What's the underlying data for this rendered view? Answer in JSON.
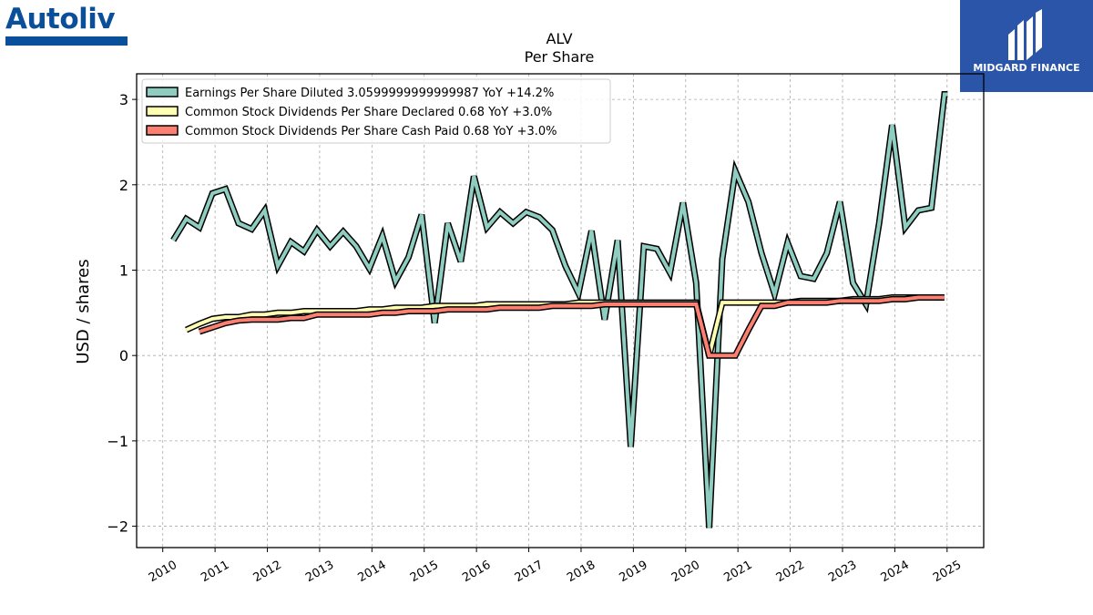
{
  "logos": {
    "left_text": "Autoliv",
    "left_color": "#0a4f99",
    "right_text": "MIDGARD FINANCE",
    "right_bg": "#2a55a8"
  },
  "chart_data": {
    "type": "line",
    "title": "ALV",
    "subtitle": "Per  Share",
    "xlabel": "",
    "ylabel": "USD / shares",
    "xlim": [
      2009.5,
      2025.7
    ],
    "ylim": [
      -2.25,
      3.3
    ],
    "x_ticks": [
      2010,
      2011,
      2012,
      2013,
      2014,
      2015,
      2016,
      2017,
      2018,
      2019,
      2020,
      2021,
      2022,
      2023,
      2024,
      2025
    ],
    "y_ticks": [
      -2,
      -1,
      0,
      1,
      2,
      3
    ],
    "y_tick_labels": [
      "−2",
      "−1",
      "0",
      "1",
      "2",
      "3"
    ],
    "grid": true,
    "legend_position": "top-left",
    "series": [
      {
        "name": "Earnings Per Share Diluted  3.0599999999999987 YoY +14.2%",
        "color": "#8ecdc0",
        "x": [
          2010.2,
          2010.45,
          2010.7,
          2010.95,
          2011.2,
          2011.45,
          2011.7,
          2011.95,
          2012.2,
          2012.45,
          2012.7,
          2012.95,
          2013.2,
          2013.45,
          2013.7,
          2013.95,
          2014.2,
          2014.45,
          2014.7,
          2014.95,
          2015.2,
          2015.45,
          2015.7,
          2015.95,
          2016.2,
          2016.45,
          2016.7,
          2016.95,
          2017.2,
          2017.45,
          2017.7,
          2017.95,
          2018.2,
          2018.45,
          2018.7,
          2018.95,
          2019.2,
          2019.45,
          2019.7,
          2019.95,
          2020.2,
          2020.45,
          2020.7,
          2020.95,
          2021.2,
          2021.45,
          2021.7,
          2021.95,
          2022.2,
          2022.45,
          2022.7,
          2022.95,
          2023.2,
          2023.45,
          2023.7,
          2023.95,
          2024.2,
          2024.45,
          2024.7,
          2024.95,
          2025.2
        ],
        "values": [
          1.35,
          1.6,
          1.5,
          1.9,
          1.95,
          1.55,
          1.48,
          1.7,
          1.05,
          1.33,
          1.22,
          1.47,
          1.28,
          1.45,
          1.28,
          1.02,
          1.4,
          0.87,
          1.15,
          1.65,
          0.38,
          1.55,
          1.1,
          2.1,
          1.5,
          1.68,
          1.55,
          1.68,
          1.62,
          1.47,
          1.05,
          0.73,
          1.46,
          0.42,
          1.35,
          -1.07,
          1.28,
          1.25,
          0.97,
          1.79,
          0.85,
          -2.02,
          1.13,
          2.16,
          1.8,
          1.2,
          0.72,
          1.32,
          0.93,
          0.9,
          1.2,
          1.8,
          0.85,
          0.6,
          1.55,
          2.7,
          1.5,
          1.7,
          1.73,
          3.06,
          3.06
        ],
        "x_end": 2025.0
      },
      {
        "name": "Common Stock Dividends Per Share Declared  0.68 YoY +3.0%",
        "color": "#ffffb3",
        "x": [
          2010.45,
          2010.7,
          2010.95,
          2011.2,
          2011.45,
          2011.7,
          2011.95,
          2012.2,
          2012.45,
          2012.7,
          2012.95,
          2013.2,
          2013.45,
          2013.7,
          2013.95,
          2014.2,
          2014.45,
          2014.7,
          2014.95,
          2015.2,
          2015.45,
          2015.7,
          2015.95,
          2016.2,
          2016.45,
          2016.7,
          2016.95,
          2017.2,
          2017.45,
          2017.7,
          2017.95,
          2018.2,
          2018.45,
          2018.7,
          2018.95,
          2019.2,
          2019.45,
          2019.7,
          2019.95,
          2020.2,
          2020.45,
          2020.7,
          2020.95,
          2021.2,
          2021.45,
          2021.7,
          2021.95,
          2022.2,
          2022.45,
          2022.7,
          2022.95,
          2023.2,
          2023.45,
          2023.7,
          2023.95,
          2024.2,
          2024.45,
          2024.7
        ],
        "values": [
          0.3,
          0.37,
          0.43,
          0.45,
          0.45,
          0.48,
          0.48,
          0.5,
          0.5,
          0.52,
          0.52,
          0.52,
          0.52,
          0.52,
          0.54,
          0.54,
          0.56,
          0.56,
          0.56,
          0.58,
          0.58,
          0.58,
          0.58,
          0.6,
          0.6,
          0.6,
          0.6,
          0.6,
          0.6,
          0.6,
          0.62,
          0.62,
          0.62,
          0.62,
          0.62,
          0.62,
          0.62,
          0.62,
          0.62,
          0.62,
          0.0,
          0.62,
          0.62,
          0.62,
          0.62,
          0.62,
          0.62,
          0.64,
          0.64,
          0.64,
          0.64,
          0.66,
          0.66,
          0.66,
          0.68,
          0.68,
          0.68,
          0.68
        ]
      },
      {
        "name": "Common Stock Dividends Per Share Cash Paid  0.68 YoY +3.0%",
        "color": "#fb8072",
        "x": [
          2010.7,
          2010.95,
          2011.2,
          2011.45,
          2011.7,
          2011.95,
          2012.2,
          2012.45,
          2012.7,
          2012.95,
          2013.2,
          2013.45,
          2013.7,
          2013.95,
          2014.2,
          2014.45,
          2014.7,
          2014.95,
          2015.2,
          2015.45,
          2015.7,
          2015.95,
          2016.2,
          2016.45,
          2016.7,
          2016.95,
          2017.2,
          2017.45,
          2017.7,
          2017.95,
          2018.2,
          2018.45,
          2018.7,
          2018.95,
          2019.2,
          2019.45,
          2019.7,
          2019.95,
          2020.2,
          2020.45,
          2020.7,
          2020.95,
          2021.2,
          2021.45,
          2021.7,
          2021.95,
          2022.2,
          2022.45,
          2022.7,
          2022.95,
          2023.2,
          2023.45,
          2023.7,
          2023.95,
          2024.2,
          2024.45,
          2024.7,
          2024.95
        ],
        "values": [
          0.28,
          0.33,
          0.38,
          0.41,
          0.42,
          0.42,
          0.42,
          0.44,
          0.44,
          0.48,
          0.48,
          0.48,
          0.48,
          0.48,
          0.5,
          0.5,
          0.52,
          0.52,
          0.52,
          0.54,
          0.54,
          0.54,
          0.54,
          0.56,
          0.56,
          0.56,
          0.56,
          0.58,
          0.58,
          0.58,
          0.58,
          0.6,
          0.6,
          0.6,
          0.6,
          0.6,
          0.6,
          0.6,
          0.6,
          0.0,
          0.0,
          0.0,
          0.3,
          0.58,
          0.58,
          0.62,
          0.62,
          0.62,
          0.62,
          0.64,
          0.64,
          0.64,
          0.64,
          0.66,
          0.66,
          0.68,
          0.68,
          0.68
        ]
      }
    ]
  }
}
